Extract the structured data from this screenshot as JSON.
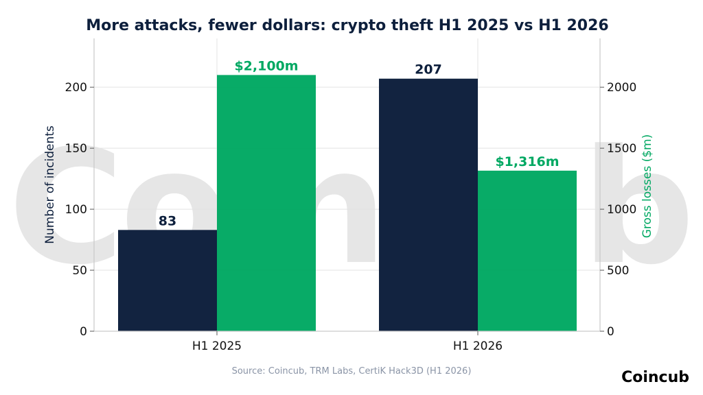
{
  "brand": "Coincub",
  "source": "Source: Coincub, TRM Labs, CertiK Hack3D (H1 2026)",
  "watermark": "Coincub",
  "colors": {
    "incidents": "#0d1f3c",
    "losses": "#00a862",
    "title": "#0d1f3c"
  },
  "chart_data": {
    "type": "bar",
    "title": "More attacks, fewer dollars: crypto theft H1 2025 vs H1 2026",
    "categories": [
      "H1 2025",
      "H1 2026"
    ],
    "series": [
      {
        "axis": "left",
        "values": [
          83,
          207
        ],
        "labels": [
          "83",
          "207"
        ],
        "color": "#0d1f3c"
      },
      {
        "axis": "right",
        "values": [
          2100,
          1316
        ],
        "labels": [
          "$2,100m",
          "$1,316m"
        ],
        "color": "#00a862"
      }
    ],
    "ylabel_left": "Number of incidents",
    "ylabel_right": "Gross losses ($m)",
    "ylim_left": [
      0,
      240
    ],
    "ylim_right": [
      0,
      2400
    ],
    "yticks_left": [
      0,
      50,
      100,
      150,
      200
    ],
    "yticks_right": [
      0,
      500,
      1000,
      1500,
      2000
    ],
    "grid": true,
    "legend": "none"
  }
}
